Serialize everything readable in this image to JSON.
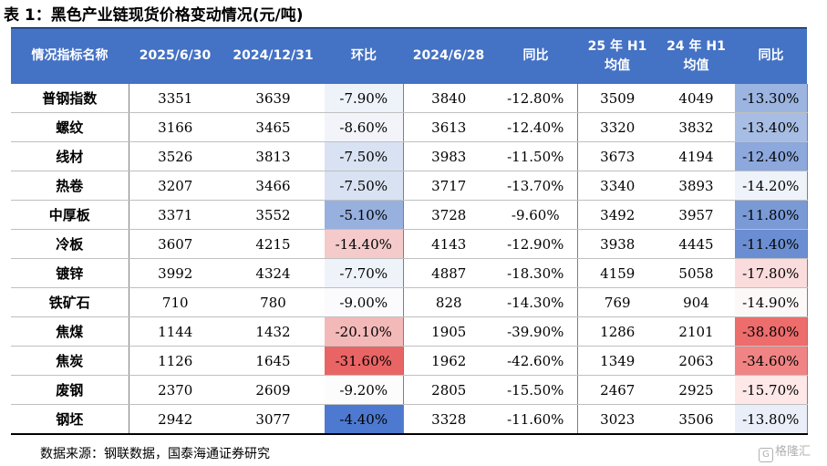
{
  "title": "表 1：黑色产业链现货价格变动情况(元/吨)",
  "headers": [
    "情况指标名称",
    "2025/6/30",
    "2024/12/31",
    "环比",
    "2024/6/28",
    "同比",
    [
      "25 年 H1",
      "均值"
    ],
    [
      "24 年 H1",
      "均值"
    ],
    "同比"
  ],
  "rows": [
    {
      "name": "普钢指数",
      "cells": [
        "3351",
        "3639",
        "-7.90%",
        "3840",
        "-12.80%",
        "3509",
        "4049",
        "-13.30%"
      ]
    },
    {
      "name": "螺纹",
      "cells": [
        "3166",
        "3465",
        "-8.60%",
        "3613",
        "-12.40%",
        "3320",
        "3832",
        "-13.40%"
      ]
    },
    {
      "name": "线材",
      "cells": [
        "3526",
        "3813",
        "-7.50%",
        "3983",
        "-11.50%",
        "3673",
        "4194",
        "-12.40%"
      ]
    },
    {
      "name": "热卷",
      "cells": [
        "3207",
        "3466",
        "-7.50%",
        "3717",
        "-13.70%",
        "3340",
        "3893",
        "-14.20%"
      ]
    },
    {
      "name": "中厚板",
      "cells": [
        "3371",
        "3552",
        "-5.10%",
        "3728",
        "-9.60%",
        "3492",
        "3957",
        "-11.80%"
      ]
    },
    {
      "name": "冷板",
      "cells": [
        "3607",
        "4215",
        "-14.40%",
        "4143",
        "-12.90%",
        "3938",
        "4445",
        "-11.40%"
      ]
    },
    {
      "name": "镀锌",
      "cells": [
        "3992",
        "4324",
        "-7.70%",
        "4887",
        "-18.30%",
        "4159",
        "5058",
        "-17.80%"
      ]
    },
    {
      "name": "铁矿石",
      "cells": [
        "710",
        "780",
        "-9.00%",
        "828",
        "-14.30%",
        "769",
        "904",
        "-14.90%"
      ]
    },
    {
      "name": "焦煤",
      "cells": [
        "1144",
        "1432",
        "-20.10%",
        "1905",
        "-39.90%",
        "1286",
        "2101",
        "-38.80%"
      ]
    },
    {
      "name": "焦炭",
      "cells": [
        "1126",
        "1645",
        "-31.60%",
        "1962",
        "-42.60%",
        "1349",
        "2063",
        "-34.60%"
      ]
    },
    {
      "name": "废钢",
      "cells": [
        "2370",
        "2609",
        "-9.20%",
        "2805",
        "-15.50%",
        "2467",
        "2925",
        "-15.70%"
      ]
    },
    {
      "name": "钢坯",
      "cells": [
        "2942",
        "3077",
        "-4.40%",
        "3328",
        "-11.60%",
        "3023",
        "3506",
        "-13.80%"
      ]
    }
  ],
  "heatmap_colors": {
    "mom": [
      "#eef2f9",
      "#f2f4fa",
      "#d9e2f2",
      "#d9e2f2",
      "#97b0de",
      "#f4caca",
      "#eef2f9",
      "#fbfbfd",
      "#f3b9b9",
      "#e96464",
      "#fcfcfd",
      "#4d7ad0"
    ],
    "yoy_h1": [
      "#9bb4e0",
      "#a7bde3",
      "#8ca8dc",
      "#eef2f9",
      "#7a9ad6",
      "#6b8ed2",
      "#fbdcdc",
      "#fcf8f8",
      "#ed6c6c",
      "#f08484",
      "#fde7e7",
      "#e9eef8"
    ]
  },
  "source": "数据来源：钢联数据，国泰海通证券研究",
  "watermark": "格隆汇"
}
